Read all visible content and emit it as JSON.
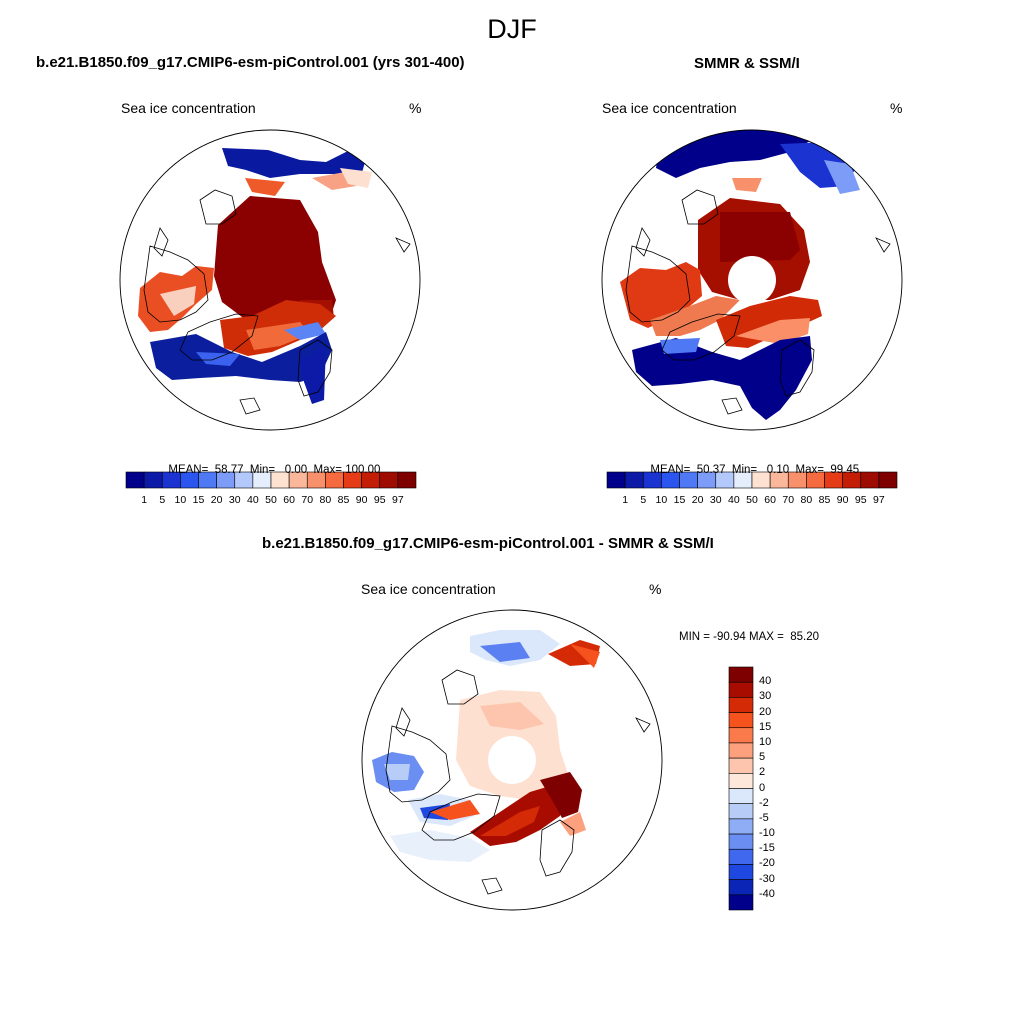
{
  "figure": {
    "title": "DJF"
  },
  "panels": [
    {
      "id": "model",
      "title": "b.e21.B1850.f09_g17.CMIP6-esm-piControl.001 (yrs 301-400)",
      "variable": "Sea ice concentration",
      "units": "%",
      "stats": {
        "mean_label": "MEAN=",
        "mean": "58.77",
        "min_label": "Min=",
        "min": "0.00",
        "max_label": "Max=",
        "max": "100.00"
      }
    },
    {
      "id": "obs",
      "title": "SMMR & SSM/I",
      "variable": "Sea ice concentration",
      "units": "%",
      "stats": {
        "mean_label": "MEAN=",
        "mean": "50.37",
        "min_label": "Min=",
        "min": "0.10",
        "max_label": "Max=",
        "max": "99.45"
      }
    },
    {
      "id": "diff",
      "title": "b.e21.B1850.f09_g17.CMIP6-esm-piControl.001 - SMMR & SSM/I",
      "variable": "Sea ice concentration",
      "units": "%",
      "stats": {
        "minmax_text": "MIN = -90.94 MAX =  85.20"
      }
    }
  ],
  "colorbars": {
    "concentration": {
      "labels": [
        "1",
        "5",
        "10",
        "15",
        "20",
        "30",
        "40",
        "50",
        "60",
        "70",
        "80",
        "85",
        "90",
        "95",
        "97"
      ],
      "colors": [
        "#00008b",
        "#0d1aa8",
        "#1a33d1",
        "#2a55ee",
        "#4f78f5",
        "#7c9cf7",
        "#b3c8fb",
        "#e4eefc",
        "#fde2d2",
        "#fbb79a",
        "#f9906c",
        "#f56a3e",
        "#e53b17",
        "#c41d05",
        "#9e0b00",
        "#7f0000"
      ]
    },
    "difference": {
      "labels": [
        "40",
        "30",
        "20",
        "15",
        "10",
        "5",
        "2",
        "0",
        "-2",
        "-5",
        "-10",
        "-15",
        "-20",
        "-30",
        "-40"
      ],
      "colors": [
        "#7f0000",
        "#a80c00",
        "#d52a06",
        "#f5521e",
        "#fa7a4b",
        "#fca07e",
        "#fdc5ad",
        "#fde6da",
        "#dbe7fb",
        "#b7cdf8",
        "#8fadf4",
        "#6a8ef1",
        "#3f68ef",
        "#1f48e0",
        "#0b26b6",
        "#00008b"
      ]
    }
  },
  "legend_colors": {
    "coast": "#000000",
    "ocean": "#ffffff"
  }
}
